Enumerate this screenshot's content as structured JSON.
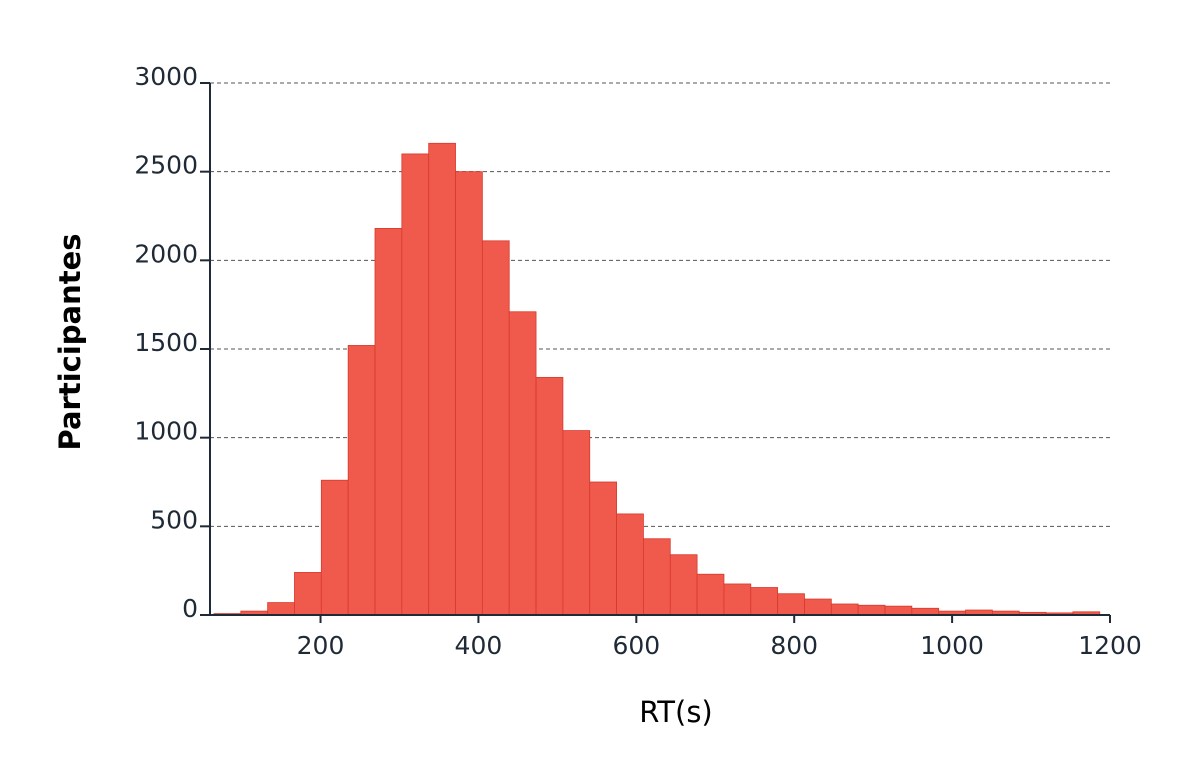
{
  "chart_data": {
    "type": "bar",
    "title": "",
    "xlabel": "RT(s)",
    "ylabel": "Participantes",
    "xlim": [
      60,
      1200
    ],
    "ylim": [
      0,
      3000
    ],
    "x_ticks": [
      200,
      400,
      600,
      800,
      1000,
      1200
    ],
    "y_ticks": [
      0,
      500,
      1000,
      1500,
      2000,
      2500,
      3000
    ],
    "grid": "horizontal dashed",
    "bar_color": "#ef5a4c",
    "bin_width": 34,
    "bins": [
      {
        "start": 65,
        "value": 8
      },
      {
        "start": 99,
        "value": 22
      },
      {
        "start": 133,
        "value": 70
      },
      {
        "start": 167,
        "value": 240
      },
      {
        "start": 201,
        "value": 760
      },
      {
        "start": 235,
        "value": 1520
      },
      {
        "start": 269,
        "value": 2180
      },
      {
        "start": 303,
        "value": 2600
      },
      {
        "start": 337,
        "value": 2660
      },
      {
        "start": 371,
        "value": 2500
      },
      {
        "start": 405,
        "value": 2110
      },
      {
        "start": 439,
        "value": 1710
      },
      {
        "start": 473,
        "value": 1340
      },
      {
        "start": 507,
        "value": 1040
      },
      {
        "start": 541,
        "value": 750
      },
      {
        "start": 575,
        "value": 570
      },
      {
        "start": 609,
        "value": 430
      },
      {
        "start": 643,
        "value": 340
      },
      {
        "start": 677,
        "value": 230
      },
      {
        "start": 711,
        "value": 175
      },
      {
        "start": 745,
        "value": 155
      },
      {
        "start": 779,
        "value": 120
      },
      {
        "start": 813,
        "value": 90
      },
      {
        "start": 847,
        "value": 62
      },
      {
        "start": 881,
        "value": 55
      },
      {
        "start": 915,
        "value": 50
      },
      {
        "start": 949,
        "value": 38
      },
      {
        "start": 983,
        "value": 22
      },
      {
        "start": 1017,
        "value": 28
      },
      {
        "start": 1051,
        "value": 22
      },
      {
        "start": 1085,
        "value": 15
      },
      {
        "start": 1119,
        "value": 12
      },
      {
        "start": 1153,
        "value": 18
      }
    ]
  }
}
